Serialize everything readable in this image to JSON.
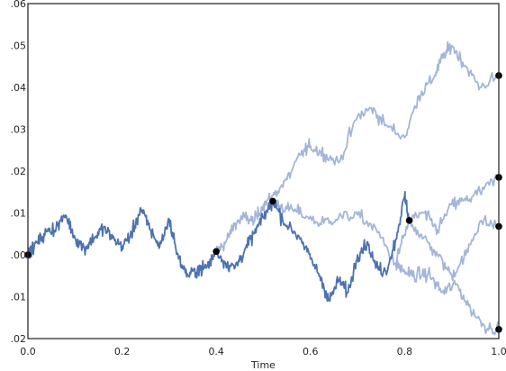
{
  "chart_data": {
    "type": "line",
    "title": "",
    "xlabel": "Time",
    "ylabel": "",
    "xlim": [
      0.0,
      1.0
    ],
    "ylim": [
      -0.02,
      0.06
    ],
    "x_ticks": [
      0.0,
      0.2,
      0.4,
      0.6,
      0.8,
      1.0
    ],
    "x_tick_labels": [
      "0.0",
      "0.2",
      "0.4",
      "0.6",
      "0.8",
      "1.0"
    ],
    "y_ticks": [
      -0.02,
      -0.01,
      0.0,
      0.01,
      0.02,
      0.03,
      0.04,
      0.05,
      0.06
    ],
    "y_tick_labels": [
      ".02",
      ".01",
      ".00",
      ".01",
      ".02",
      ".03",
      ".04",
      ".05",
      ".06"
    ],
    "grid": false,
    "legend": "none",
    "colors": {
      "dark_path": "#4c72b0",
      "light_path": "#a3b6d9",
      "marker": "#000000",
      "frame": "#262626"
    },
    "series": [
      {
        "style": "dark",
        "x": [
          0.0,
          0.02,
          0.04,
          0.06,
          0.08,
          0.1,
          0.12,
          0.14,
          0.16,
          0.18,
          0.2,
          0.22,
          0.24,
          0.26,
          0.28,
          0.3,
          0.32,
          0.34,
          0.36,
          0.38,
          0.4
        ],
        "y": [
          0.0,
          0.003,
          0.0055,
          0.0065,
          0.0095,
          0.004,
          0.0015,
          0.004,
          0.0065,
          0.004,
          0.002,
          0.005,
          0.011,
          0.006,
          0.002,
          0.0085,
          -0.001,
          -0.005,
          -0.0035,
          -0.003,
          0.0008
        ]
      },
      {
        "style": "dark",
        "x": [
          0.4,
          0.42,
          0.44,
          0.46,
          0.48,
          0.5,
          0.52
        ],
        "y": [
          0.0008,
          -0.002,
          -0.003,
          0.001,
          0.005,
          0.009,
          0.0128
        ]
      },
      {
        "style": "light",
        "x": [
          0.4,
          0.42,
          0.44,
          0.46,
          0.48,
          0.5,
          0.52
        ],
        "y": [
          0.0008,
          0.003,
          0.0075,
          0.009,
          0.008,
          0.012,
          0.014
        ]
      },
      {
        "style": "light",
        "x": [
          0.52,
          0.55,
          0.58,
          0.6,
          0.63,
          0.66,
          0.7,
          0.73,
          0.76,
          0.8,
          0.83,
          0.86,
          0.88,
          0.9,
          0.93,
          0.96,
          1.0
        ],
        "y": [
          0.014,
          0.018,
          0.024,
          0.026,
          0.024,
          0.022,
          0.033,
          0.035,
          0.031,
          0.028,
          0.038,
          0.042,
          0.047,
          0.05,
          0.045,
          0.04,
          0.0428
        ]
      },
      {
        "style": "light",
        "x": [
          0.52,
          0.55,
          0.58,
          0.62,
          0.66,
          0.7,
          0.74,
          0.78,
          0.81
        ],
        "y": [
          0.0128,
          0.011,
          0.01,
          0.0075,
          0.009,
          0.0095,
          0.006,
          -0.002,
          0.0082
        ]
      },
      {
        "style": "dark",
        "x": [
          0.52,
          0.55,
          0.58,
          0.6,
          0.62,
          0.64,
          0.66,
          0.68,
          0.7,
          0.72,
          0.74,
          0.76,
          0.78,
          0.8,
          0.81
        ],
        "y": [
          0.0128,
          0.007,
          0.004,
          -0.001,
          -0.005,
          -0.011,
          -0.006,
          -0.009,
          0.0,
          0.003,
          -0.003,
          -0.004,
          0.003,
          0.014,
          0.0082
        ]
      },
      {
        "style": "light",
        "x": [
          0.81,
          0.84,
          0.87,
          0.9,
          0.93,
          0.96,
          1.0
        ],
        "y": [
          0.0082,
          0.01,
          0.006,
          0.012,
          0.013,
          0.015,
          0.0185
        ]
      },
      {
        "style": "light",
        "x": [
          0.81,
          0.84,
          0.87,
          0.9,
          0.93,
          0.96,
          1.0
        ],
        "y": [
          0.0082,
          0.004,
          0.0,
          -0.005,
          0.0,
          0.008,
          0.0068
        ]
      },
      {
        "style": "light",
        "x": [
          0.78,
          0.8,
          0.82,
          0.85,
          0.88,
          0.91,
          0.94,
          0.97,
          1.0
        ],
        "y": [
          -0.002,
          -0.004,
          -0.005,
          -0.0045,
          -0.009,
          -0.007,
          -0.013,
          -0.017,
          -0.0178
        ]
      }
    ],
    "markers": [
      {
        "x": 0.0,
        "y": 0.0
      },
      {
        "x": 0.4,
        "y": 0.0008
      },
      {
        "x": 0.52,
        "y": 0.0128
      },
      {
        "x": 0.81,
        "y": 0.0082
      },
      {
        "x": 1.0,
        "y": 0.0428
      },
      {
        "x": 1.0,
        "y": 0.0185
      },
      {
        "x": 1.0,
        "y": 0.0068
      },
      {
        "x": 1.0,
        "y": -0.0178
      }
    ]
  }
}
